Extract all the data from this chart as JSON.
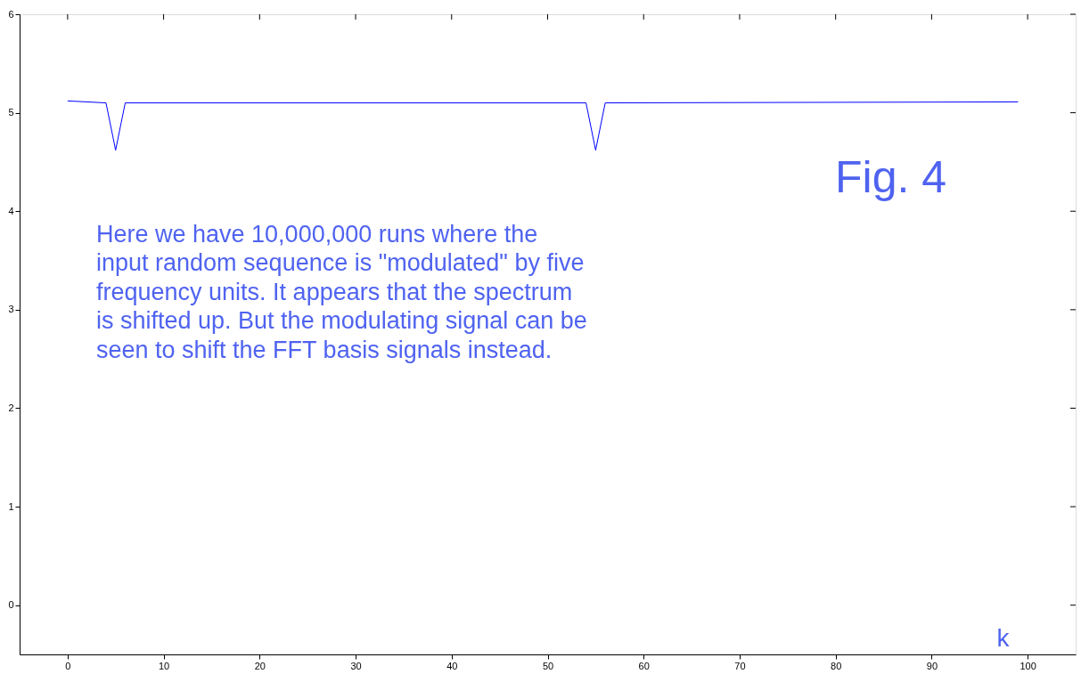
{
  "chart_data": {
    "type": "line",
    "x": [
      0,
      4,
      5,
      6,
      54,
      55,
      56,
      99
    ],
    "series": [
      {
        "color": "#0000ff",
        "values": [
          5.12,
          5.1,
          4.62,
          5.1,
          5.1,
          4.62,
          5.1,
          5.11
        ]
      }
    ],
    "xlim": [
      -5,
      105
    ],
    "xticks": [
      0,
      10,
      20,
      30,
      40,
      50,
      60,
      70,
      80,
      90,
      100
    ],
    "ylim": [
      -0.5,
      6
    ],
    "yticks": [
      0,
      1,
      2,
      3,
      4,
      5,
      6
    ],
    "xlabel": "k",
    "annotations": [
      "Fig. 4",
      "Here we have 10,000,000 runs where the\ninput random sequence is \"modulated\" by five\nfrequency units.   It appears that the spectrum\nis shifted up.  But the modulating signal can be\nseen to shift the FFT basis signals instead."
    ],
    "grid": false,
    "marker": "none",
    "line_style": "solid"
  }
}
